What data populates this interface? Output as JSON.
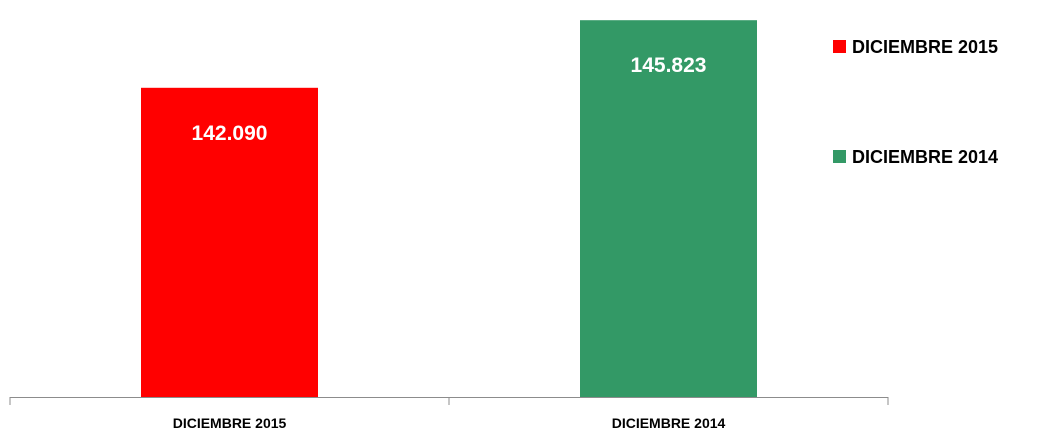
{
  "chart_data": {
    "type": "bar",
    "categories": [
      "DICIEMBRE 2015",
      "DICIEMBRE 2014"
    ],
    "values": [
      142090,
      145823
    ],
    "data_labels": [
      "142.090",
      "145.823"
    ],
    "colors": [
      "#ff0000",
      "#339966"
    ],
    "ylim": [
      125000,
      146500
    ],
    "title": "",
    "xlabel": "",
    "ylabel": "",
    "y_axis_visible": false,
    "grid": false,
    "legend": {
      "placement": "right",
      "entries": [
        {
          "name": "DICIEMBRE 2015",
          "color": "#ff0000"
        },
        {
          "name": "DICIEMBRE 2014",
          "color": "#339966"
        }
      ]
    }
  }
}
